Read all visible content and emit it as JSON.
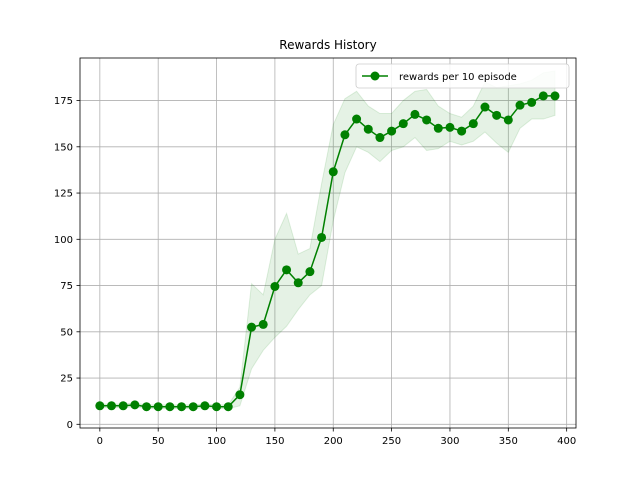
{
  "chart_data": {
    "type": "line",
    "title": "Rewards History",
    "xlabel": "",
    "ylabel": "",
    "xlim": [
      -17,
      408
    ],
    "ylim": [
      -2,
      198
    ],
    "xticks": [
      0,
      50,
      100,
      150,
      200,
      250,
      300,
      350,
      400
    ],
    "yticks": [
      0,
      25,
      50,
      75,
      100,
      125,
      150,
      175
    ],
    "grid": true,
    "legend_position": "upper right",
    "colors": {
      "line": "#008000",
      "band": "#008000"
    },
    "series": [
      {
        "name": "rewards per 10 episode",
        "marker": "circle",
        "x": [
          0,
          10,
          20,
          30,
          40,
          50,
          60,
          70,
          80,
          90,
          100,
          110,
          120,
          130,
          140,
          150,
          160,
          170,
          180,
          190,
          200,
          210,
          220,
          230,
          240,
          250,
          260,
          270,
          280,
          290,
          300,
          310,
          320,
          330,
          340,
          350,
          360,
          370,
          380,
          390
        ],
        "values": [
          10,
          10,
          10,
          10.5,
          9.5,
          9.5,
          9.5,
          9.5,
          9.5,
          10,
          9.5,
          9.5,
          16,
          52.5,
          54,
          74.5,
          83.5,
          76.5,
          82.5,
          101,
          136.5,
          156.5,
          165,
          159.5,
          155,
          158.5,
          162.5,
          167.5,
          164.5,
          160,
          160.5,
          158.5,
          162.5,
          171.5,
          167,
          164.5,
          172.5,
          174,
          177.5,
          177.5
        ],
        "upper": [
          11,
          11,
          11,
          11.5,
          10.5,
          10.5,
          10.5,
          10.5,
          10.5,
          11,
          10.5,
          10.5,
          20,
          76,
          70,
          100,
          114,
          92,
          95,
          130,
          162,
          176,
          180,
          172,
          168,
          168,
          175,
          180,
          181,
          172,
          168,
          166,
          172,
          185,
          182,
          183,
          184,
          186,
          190,
          191
        ],
        "lower": [
          9,
          9,
          9,
          9.5,
          8.5,
          8.5,
          8.5,
          8.5,
          8.5,
          9,
          8.5,
          8.5,
          10,
          30,
          40,
          47,
          53,
          62,
          70,
          75,
          110,
          136,
          150,
          147,
          142,
          148,
          150,
          155,
          148,
          149,
          153,
          151,
          153,
          158,
          152,
          147,
          160,
          165,
          165,
          167
        ]
      }
    ]
  }
}
